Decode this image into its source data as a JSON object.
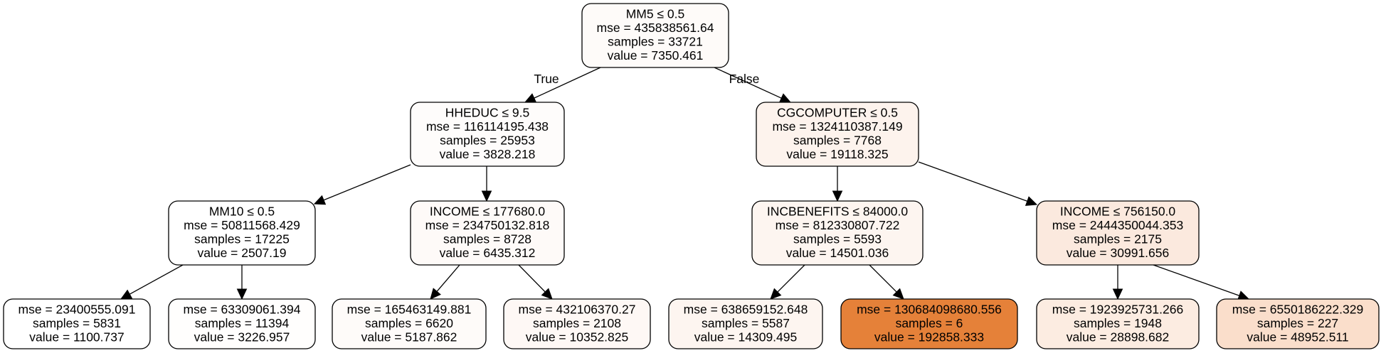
{
  "edge_labels": {
    "true_label": "True",
    "false_label": "False"
  },
  "nodes": [
    {
      "id": "root",
      "fill": "#fefbf9",
      "lines": [
        "MM5 ≤ 0.5",
        "mse = 435838561.64",
        "samples = 33721",
        "value = 7350.461"
      ]
    },
    {
      "id": "hheduc",
      "fill": "#fefcfb",
      "lines": [
        "HHEDUC ≤ 9.5",
        "mse = 116114195.438",
        "samples = 25953",
        "value = 3828.218"
      ]
    },
    {
      "id": "cgcomputer",
      "fill": "#fdf3ed",
      "lines": [
        "CGCOMPUTER ≤ 0.5",
        "mse = 1324110387.149",
        "samples = 7768",
        "value = 19118.325"
      ]
    },
    {
      "id": "mm10",
      "fill": "#ffffff",
      "lines": [
        "MM10 ≤ 0.5",
        "mse = 50811568.429",
        "samples = 17225",
        "value = 2507.19"
      ]
    },
    {
      "id": "income1",
      "fill": "#fefaf8",
      "lines": [
        "INCOME ≤ 177680.0",
        "mse = 234750132.818",
        "samples = 8728",
        "value = 6435.312"
      ]
    },
    {
      "id": "incbenefits",
      "fill": "#fdf5f0",
      "lines": [
        "INCBENEFITS ≤ 84000.0",
        "mse = 812330807.722",
        "samples = 5593",
        "value = 14501.036"
      ]
    },
    {
      "id": "income2",
      "fill": "#fbe9de",
      "lines": [
        "INCOME ≤ 756150.0",
        "mse = 2444350044.353",
        "samples = 2175",
        "value = 30991.656"
      ]
    },
    {
      "id": "leaf1",
      "fill": "#ffffff",
      "lines": [
        "mse = 23400555.091",
        "samples = 5831",
        "value = 1100.737"
      ]
    },
    {
      "id": "leaf2",
      "fill": "#fffefd",
      "lines": [
        "mse = 63309061.394",
        "samples = 11394",
        "value = 3226.957"
      ]
    },
    {
      "id": "leaf3",
      "fill": "#fefbf9",
      "lines": [
        "mse = 165463149.881",
        "samples = 6620",
        "value = 5187.862"
      ]
    },
    {
      "id": "leaf4",
      "fill": "#fef8f5",
      "lines": [
        "mse = 432106370.27",
        "samples = 2108",
        "value = 10352.825"
      ]
    },
    {
      "id": "leaf5",
      "fill": "#fdf5f0",
      "lines": [
        "mse = 638659152.648",
        "samples = 5587",
        "value = 14309.495"
      ]
    },
    {
      "id": "leaf6",
      "fill": "#e58139",
      "lines": [
        "mse = 130684098680.556",
        "samples = 6",
        "value = 192858.333"
      ]
    },
    {
      "id": "leaf7",
      "fill": "#fcece1",
      "lines": [
        "mse = 1923925731.266",
        "samples = 1948",
        "value = 28898.682"
      ]
    },
    {
      "id": "leaf8",
      "fill": "#fadecb",
      "lines": [
        "mse = 6550186222.329",
        "samples = 227",
        "value = 48952.511"
      ]
    }
  ],
  "edges": [
    {
      "from": "root",
      "to": "hheduc",
      "label": "true_label"
    },
    {
      "from": "root",
      "to": "cgcomputer",
      "label": "false_label"
    },
    {
      "from": "hheduc",
      "to": "mm10"
    },
    {
      "from": "hheduc",
      "to": "income1"
    },
    {
      "from": "cgcomputer",
      "to": "incbenefits"
    },
    {
      "from": "cgcomputer",
      "to": "income2"
    },
    {
      "from": "mm10",
      "to": "leaf1"
    },
    {
      "from": "mm10",
      "to": "leaf2"
    },
    {
      "from": "income1",
      "to": "leaf3"
    },
    {
      "from": "income1",
      "to": "leaf4"
    },
    {
      "from": "incbenefits",
      "to": "leaf5"
    },
    {
      "from": "incbenefits",
      "to": "leaf6"
    },
    {
      "from": "income2",
      "to": "leaf7"
    },
    {
      "from": "income2",
      "to": "leaf8"
    }
  ]
}
